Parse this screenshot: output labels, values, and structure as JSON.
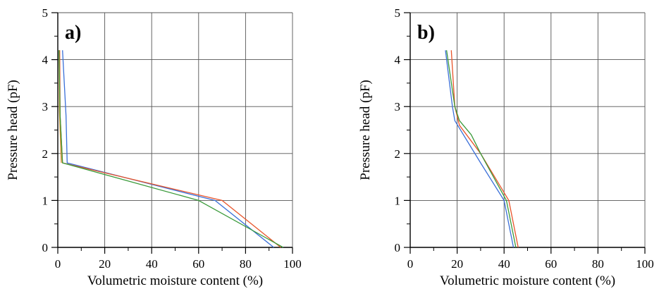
{
  "chart_data": [
    {
      "type": "line",
      "panel_label": "a)",
      "xlabel": "Volumetric moisture content (%)",
      "ylabel": "Pressure head (pF)",
      "xlim": [
        0,
        100
      ],
      "ylim": [
        0,
        5
      ],
      "xticks": [
        0,
        20,
        40,
        60,
        80,
        100
      ],
      "yticks": [
        0,
        1,
        2,
        3,
        4,
        5
      ],
      "grid": true,
      "legend": "none",
      "series": [
        {
          "color": "#3a6fd8",
          "points": [
            [
              2,
              4.2
            ],
            [
              3.5,
              2.8
            ],
            [
              4,
              1.8
            ],
            [
              67,
              1.0
            ],
            [
              92,
              0
            ]
          ]
        },
        {
          "color": "#e8542a",
          "points": [
            [
              0.8,
              4.2
            ],
            [
              1,
              2.8
            ],
            [
              2,
              1.8
            ],
            [
              70,
              1.0
            ],
            [
              80,
              0.6
            ],
            [
              95,
              0
            ]
          ]
        },
        {
          "color": "#d08a2a",
          "points": [
            [
              0.5,
              4.2
            ],
            [
              0.7,
              2.9
            ],
            [
              1.5,
              1.8
            ]
          ]
        },
        {
          "color": "#3a9a3a",
          "points": [
            [
              0.5,
              4.2
            ],
            [
              1,
              2.8
            ],
            [
              2,
              1.8
            ],
            [
              60,
              1.0
            ],
            [
              96,
              0
            ]
          ]
        }
      ]
    },
    {
      "type": "line",
      "panel_label": "b)",
      "xlabel": "Volumetric moisture content (%)",
      "ylabel": "Pressure head (pF)",
      "xlim": [
        0,
        100
      ],
      "ylim": [
        0,
        5
      ],
      "xticks": [
        0,
        20,
        40,
        60,
        80,
        100
      ],
      "yticks": [
        0,
        1,
        2,
        3,
        4,
        5
      ],
      "grid": true,
      "legend": "none",
      "series": [
        {
          "color": "#3a6fd8",
          "points": [
            [
              15,
              4.2
            ],
            [
              18,
              3.0
            ],
            [
              19,
              2.7
            ],
            [
              30,
              1.8
            ],
            [
              40,
              1.0
            ],
            [
              44,
              0
            ]
          ]
        },
        {
          "color": "#e8542a",
          "points": [
            [
              17.5,
              4.2
            ],
            [
              19,
              3.0
            ],
            [
              21,
              2.6
            ],
            [
              30,
              2.0
            ],
            [
              42,
              1.0
            ],
            [
              46,
              0
            ]
          ]
        },
        {
          "color": "#3a9a3a",
          "points": [
            [
              15.5,
              4.2
            ],
            [
              19,
              3.0
            ],
            [
              21,
              2.7
            ],
            [
              26,
              2.4
            ],
            [
              30,
              2.0
            ],
            [
              41,
              1.0
            ],
            [
              45,
              0
            ]
          ]
        }
      ]
    }
  ]
}
